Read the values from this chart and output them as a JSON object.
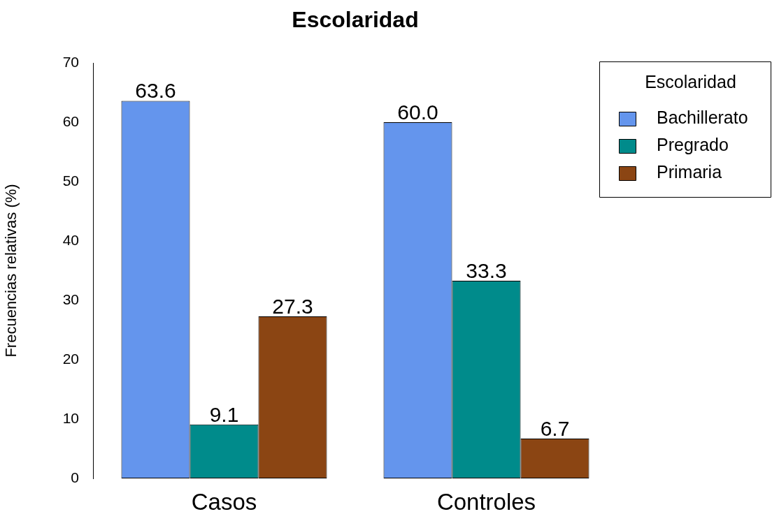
{
  "chart_data": {
    "type": "bar",
    "title": "Escolaridad",
    "ylabel": "Frecuencias relativas (%)",
    "legend_title": "Escolaridad",
    "categories": [
      "Casos",
      "Controles"
    ],
    "series": [
      {
        "name": "Bachillerato",
        "color": "#6495ed",
        "values": [
          63.6,
          60.0
        ],
        "value_labels": [
          "63.6",
          "60.0"
        ]
      },
      {
        "name": "Pregrado",
        "color": "#008b8b",
        "values": [
          9.1,
          33.3
        ],
        "value_labels": [
          "9.1",
          "33.3"
        ]
      },
      {
        "name": "Primaria",
        "color": "#8b4513",
        "values": [
          27.3,
          6.7
        ],
        "value_labels": [
          "27.3",
          "6.7"
        ]
      }
    ],
    "ylim": [
      0,
      70
    ],
    "yticks": [
      0,
      10,
      20,
      30,
      40,
      50,
      60,
      70
    ],
    "grid": false,
    "legend": "top right"
  }
}
